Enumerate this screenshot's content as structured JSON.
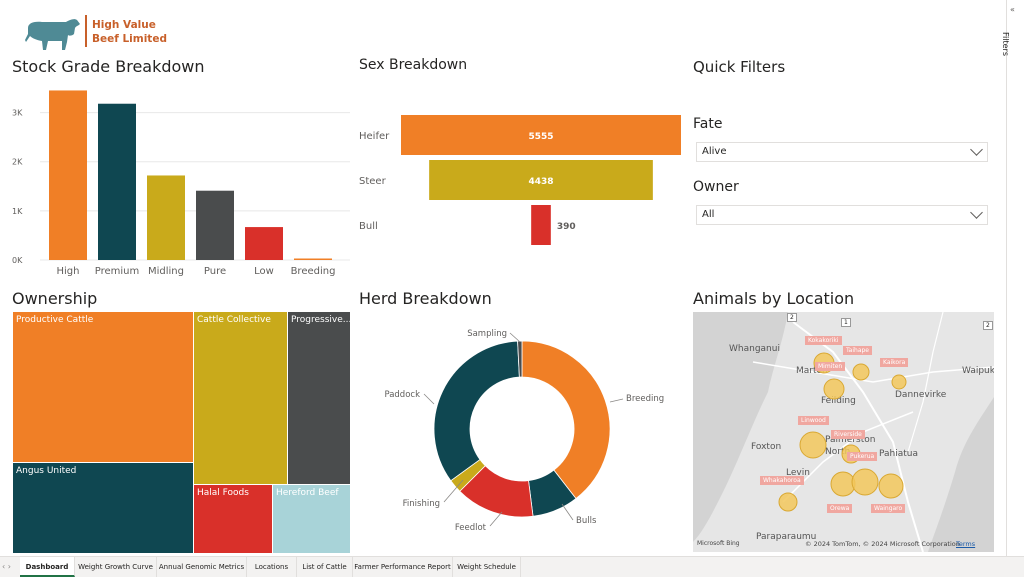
{
  "brand": {
    "line1": "High Value",
    "line2": "Beef Limited",
    "color": "#c8602a"
  },
  "filters_pane": {
    "label": "Filters",
    "collapse_glyph": "«"
  },
  "stock_grade": {
    "title": "Stock Grade Breakdown"
  },
  "sex_breakdown": {
    "title": "Sex Breakdown"
  },
  "quick_filters": {
    "title": "Quick Filters",
    "fate": {
      "label": "Fate",
      "value": "Alive"
    },
    "owner": {
      "label": "Owner",
      "value": "All"
    }
  },
  "ownership": {
    "title": "Ownership",
    "cells": [
      {
        "name": "Productive Cattle",
        "color": "#f07f26"
      },
      {
        "name": "Cattle Collective",
        "color": "#c9aa1b"
      },
      {
        "name": "Progressive...",
        "color": "#4a4c4d"
      },
      {
        "name": "Angus United",
        "color": "#0f4751"
      },
      {
        "name": "Halal Foods",
        "color": "#d9302a"
      },
      {
        "name": "Hereford Beef",
        "color": "#a8d3d8"
      }
    ]
  },
  "herd_breakdown": {
    "title": "Herd Breakdown"
  },
  "animals_by_location": {
    "title": "Animals by Location",
    "towns": [
      "Whanganui",
      "Marton",
      "Feilding",
      "Dannevirke",
      "Waipuk",
      "Foxton",
      "Palmerston North",
      "Pahiatua",
      "Levin",
      "Paraparaumu"
    ],
    "farms": [
      "Kokakoriki",
      "Taihape",
      "Mimiten",
      "Kaikora",
      "Linwood",
      "Riverside",
      "Pukerua",
      "Whakahoroa",
      "Orewa",
      "Waingaro"
    ],
    "attribution": "© 2024 TomTom, © 2024 Microsoft Corporation",
    "terms": "Terms",
    "bing": "Microsoft Bing",
    "road_markers": [
      "2",
      "1",
      "2"
    ]
  },
  "tabs": [
    "Dashboard",
    "Weight Growth Curve",
    "Annual Genomic Metrics",
    "Locations",
    "List of Cattle",
    "Farmer Performance Report",
    "Weight Schedule"
  ],
  "active_tab": "Dashboard",
  "chart_data": [
    {
      "type": "bar",
      "title": "Stock Grade Breakdown",
      "categories": [
        "High",
        "Premium",
        "Midling",
        "Pure",
        "Low",
        "Breeding"
      ],
      "values": [
        3450,
        3180,
        1720,
        1410,
        670,
        30
      ],
      "colors": [
        "#f07f26",
        "#0f4751",
        "#c9aa1b",
        "#4a4c4d",
        "#d9302a",
        "#f07f26"
      ],
      "ytick_labels": [
        "0K",
        "1K",
        "2K",
        "3K"
      ],
      "yticks": [
        0,
        1000,
        2000,
        3000
      ],
      "ylim": [
        0,
        3500
      ]
    },
    {
      "type": "bar",
      "orientation": "horizontal-centered",
      "title": "Sex Breakdown",
      "categories": [
        "Heifer",
        "Steer",
        "Bull"
      ],
      "values": [
        5555,
        4438,
        390
      ],
      "colors": [
        "#f07f26",
        "#c9aa1b",
        "#d9302a"
      ]
    },
    {
      "type": "pie",
      "variant": "donut",
      "title": "Herd Breakdown",
      "categories": [
        "Breeding",
        "Bulls",
        "Feedlot",
        "Finishing",
        "Paddock",
        "Sampling"
      ],
      "values": [
        39.5,
        8.5,
        14.5,
        2.5,
        34.2,
        0.8
      ],
      "colors": [
        "#f07f26",
        "#0f4751",
        "#d9302a",
        "#c9aa1b",
        "#0f4751",
        "#4a4c4d"
      ]
    }
  ]
}
